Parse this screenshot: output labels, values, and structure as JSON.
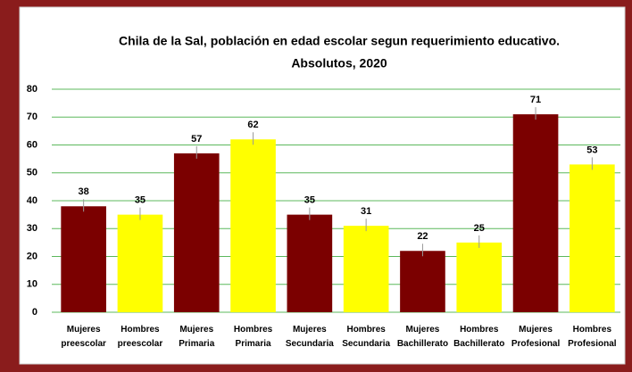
{
  "chart_data": {
    "type": "bar",
    "title": [
      "Chila de la Sal, población en edad escolar segun requerimiento educativo.",
      "Absolutos, 2020"
    ],
    "categories": [
      "Mujeres preescolar",
      "Hombres preescolar",
      "Mujeres Primaria",
      "Hombres Primaria",
      "Mujeres Secundaria",
      "Hombres Secundaria",
      "Mujeres Bachillerato",
      "Hombres Bachillerato",
      "Mujeres Profesional",
      "Hombres Profesional"
    ],
    "values": [
      38,
      35,
      57,
      62,
      35,
      31,
      22,
      25,
      71,
      53
    ],
    "colors": [
      "#7b0000",
      "#ffff00",
      "#7b0000",
      "#ffff00",
      "#7b0000",
      "#ffff00",
      "#7b0000",
      "#ffff00",
      "#7b0000",
      "#ffff00"
    ],
    "ylim": [
      0,
      80
    ],
    "yticks": [
      0,
      10,
      20,
      30,
      40,
      50,
      60,
      70,
      80
    ],
    "grid": true
  }
}
